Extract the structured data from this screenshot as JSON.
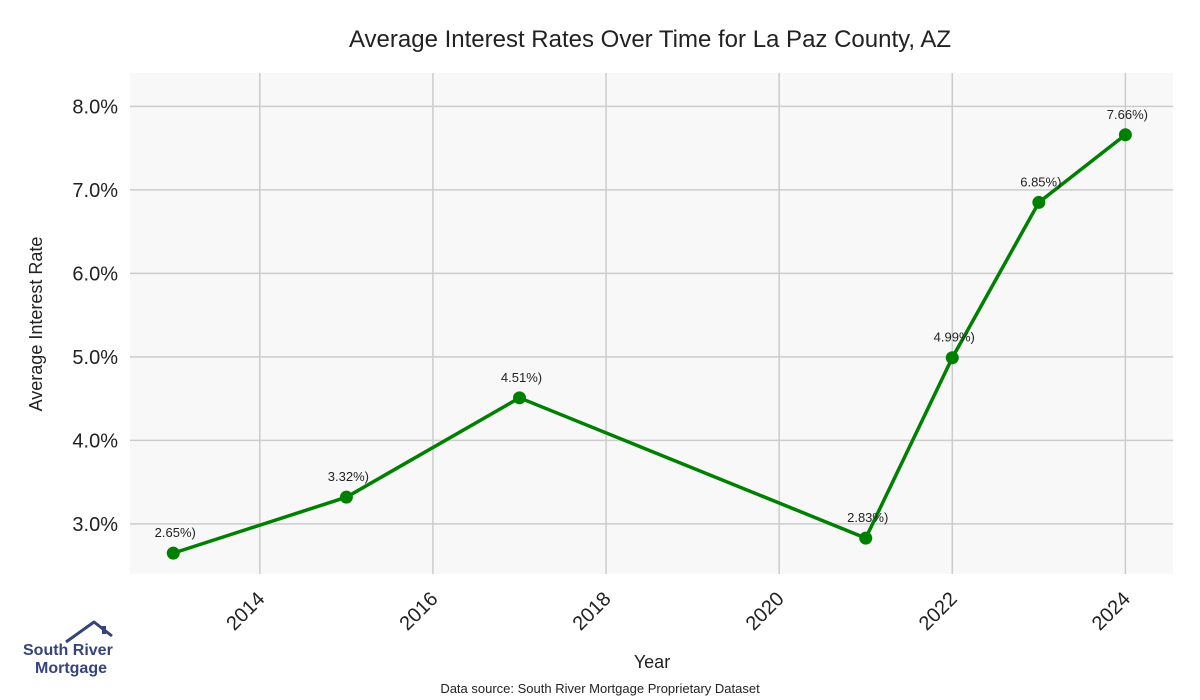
{
  "chart_data": {
    "type": "line",
    "title": "Average Interest Rates Over Time for La Paz County, AZ",
    "xlabel": "Year",
    "ylabel": "Average Interest Rate",
    "x": [
      2013,
      2015,
      2017,
      2021,
      2022,
      2023,
      2024
    ],
    "series": [
      {
        "values": [
          2.65,
          3.32,
          4.51,
          2.83,
          4.99,
          6.85,
          7.66
        ],
        "data_labels": [
          "2.65%)",
          "3.32%)",
          "4.51%)",
          "2.83%)",
          "4.99%)",
          "6.85%)",
          "7.66%)"
        ],
        "color": "#008000"
      }
    ],
    "x_ticks": [
      "2014",
      "2016",
      "2018",
      "2020",
      "2022",
      "2024"
    ],
    "y_ticks": [
      "3.0%",
      "4.0%",
      "5.0%",
      "6.0%",
      "7.0%",
      "8.0%"
    ],
    "xlim": [
      2012.5,
      2024.55
    ],
    "ylim": [
      2.4,
      8.4
    ],
    "grid": true,
    "legend": "none"
  },
  "colors": {
    "plot_background": "#f8f8f8",
    "grid": "#cccccc",
    "line": "#008000"
  },
  "footer": {
    "source": "Data source: South River Mortgage Proprietary Dataset"
  },
  "logo": {
    "line1": "South River",
    "line2": "Mortgage",
    "icon": "house-roof-icon"
  }
}
